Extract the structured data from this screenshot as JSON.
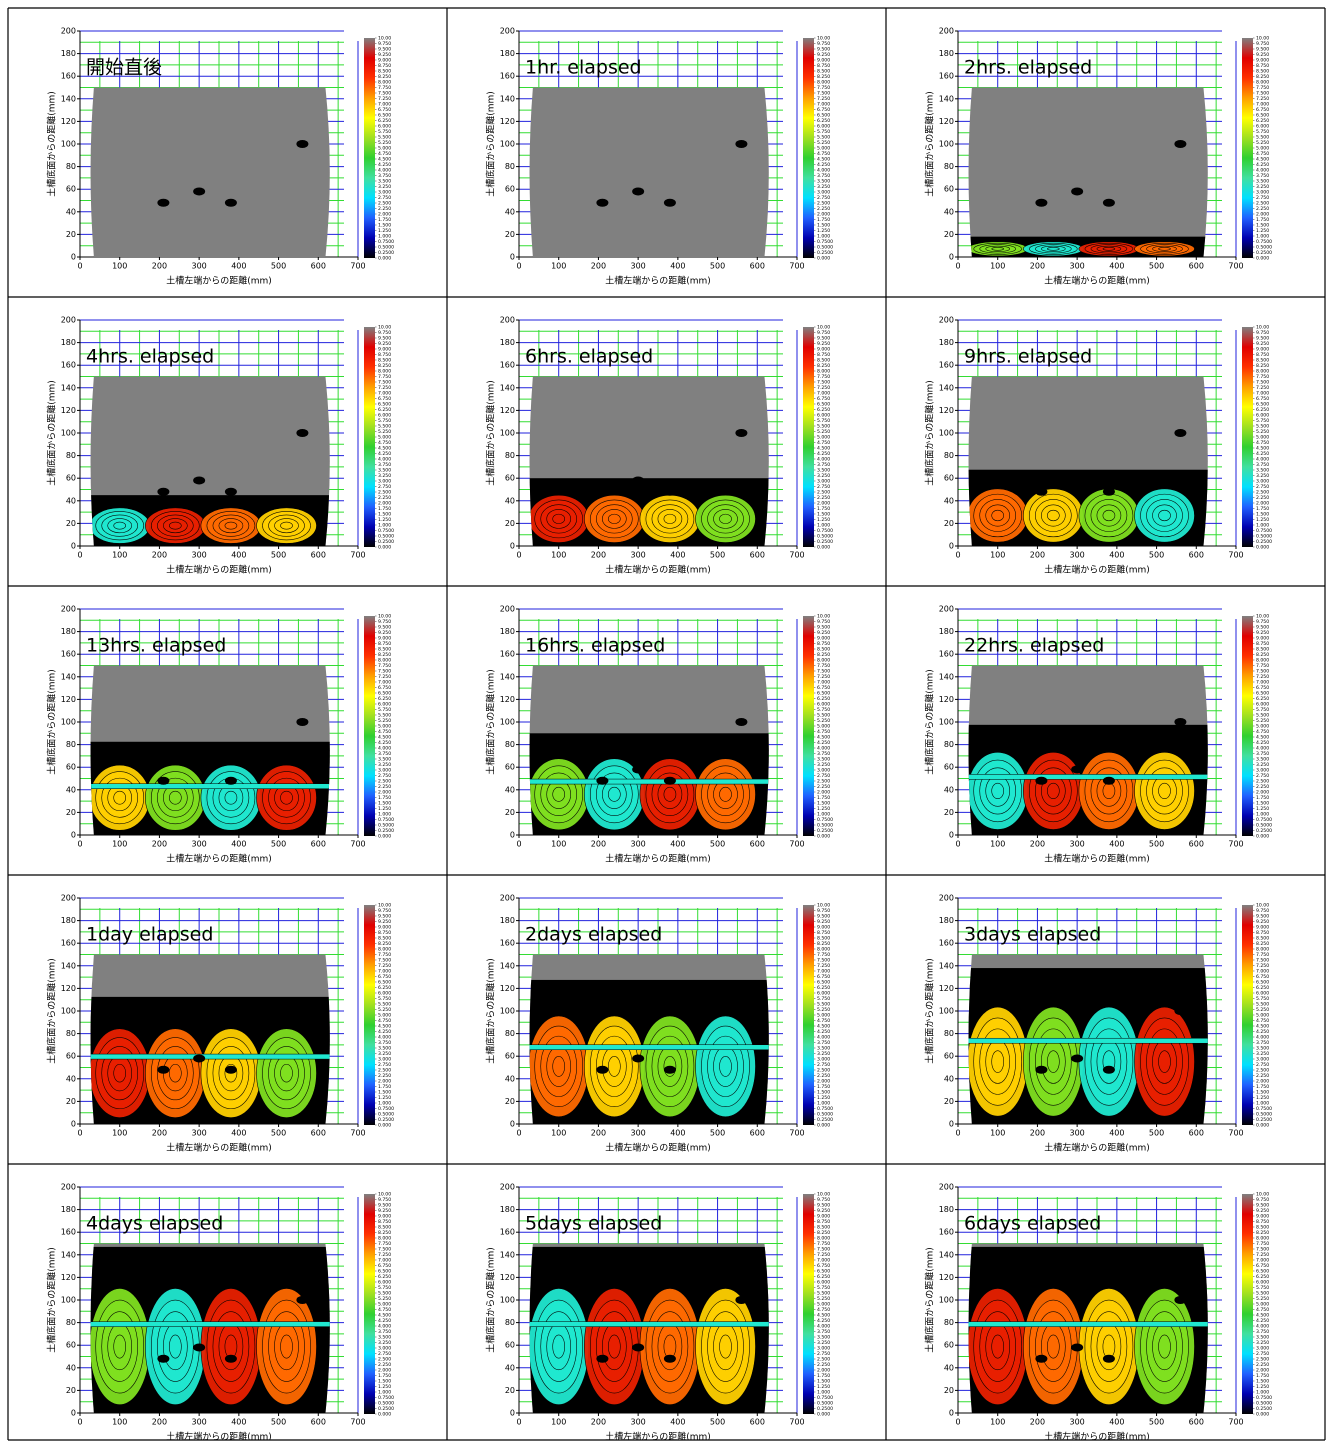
{
  "chart_data": [
    {
      "type": "contour",
      "title": "開始直後",
      "x_label": "土槽左端からの距離(mm)",
      "y_label": "土槽底面からの距離(mm)",
      "xlim": [
        0,
        700
      ],
      "xticks": [
        0,
        100,
        200,
        300,
        400,
        500,
        600,
        700
      ],
      "ylim": [
        0,
        200
      ],
      "yticks": [
        0,
        20,
        40,
        60,
        80,
        100,
        120,
        140,
        160,
        180,
        200
      ]
    },
    {
      "type": "contour",
      "title": "1hr. elapsed",
      "x_label": "土槽左端からの距離(mm)",
      "y_label": "土槽底面からの距離(mm)",
      "xlim": [
        0,
        700
      ],
      "xticks": [
        0,
        100,
        200,
        300,
        400,
        500,
        600,
        700
      ],
      "ylim": [
        0,
        200
      ],
      "yticks": [
        0,
        20,
        40,
        60,
        80,
        100,
        120,
        140,
        160,
        180,
        200
      ]
    },
    {
      "type": "contour",
      "title": "2hrs. elapsed",
      "x_label": "土槽左端からの距離(mm)",
      "y_label": "土槽底面からの距離(mm)",
      "xlim": [
        0,
        700
      ],
      "xticks": [
        0,
        100,
        200,
        300,
        400,
        500,
        600,
        700
      ],
      "ylim": [
        0,
        200
      ],
      "yticks": [
        0,
        20,
        40,
        60,
        80,
        100,
        120,
        140,
        160,
        180,
        200
      ]
    },
    {
      "type": "contour",
      "title": "4hrs. elapsed",
      "x_label": "土槽左端からの距離(mm)",
      "y_label": "土槽底面からの距離(mm)",
      "xlim": [
        0,
        700
      ],
      "xticks": [
        0,
        100,
        200,
        300,
        400,
        500,
        600,
        700
      ],
      "ylim": [
        0,
        200
      ],
      "yticks": [
        0,
        20,
        40,
        60,
        80,
        100,
        120,
        140,
        160,
        180,
        200
      ]
    },
    {
      "type": "contour",
      "title": "6hrs. elapsed",
      "x_label": "土槽左端からの距離(mm)",
      "y_label": "土槽底面からの距離(mm)",
      "xlim": [
        0,
        700
      ],
      "xticks": [
        0,
        100,
        200,
        300,
        400,
        500,
        600,
        700
      ],
      "ylim": [
        0,
        200
      ],
      "yticks": [
        0,
        20,
        40,
        60,
        80,
        100,
        120,
        140,
        160,
        180,
        200
      ]
    },
    {
      "type": "contour",
      "title": "9hrs. elapsed",
      "x_label": "土槽左端からの距離(mm)",
      "y_label": "土槽底面からの距離(mm)",
      "xlim": [
        0,
        700
      ],
      "xticks": [
        0,
        100,
        200,
        300,
        400,
        500,
        600,
        700
      ],
      "ylim": [
        0,
        200
      ],
      "yticks": [
        0,
        20,
        40,
        60,
        80,
        100,
        120,
        140,
        160,
        180,
        200
      ]
    },
    {
      "type": "contour",
      "title": "13hrs. elapsed",
      "x_label": "土槽左端からの距離(mm)",
      "y_label": "土槽底面からの距離(mm)",
      "xlim": [
        0,
        700
      ],
      "xticks": [
        0,
        100,
        200,
        300,
        400,
        500,
        600,
        700
      ],
      "ylim": [
        0,
        200
      ],
      "yticks": [
        0,
        20,
        40,
        60,
        80,
        100,
        120,
        140,
        160,
        180,
        200
      ]
    },
    {
      "type": "contour",
      "title": "16hrs. elapsed",
      "x_label": "土槽左端からの距離(mm)",
      "y_label": "土槽底面からの距離(mm)",
      "xlim": [
        0,
        700
      ],
      "xticks": [
        0,
        100,
        200,
        300,
        400,
        500,
        600,
        700
      ],
      "ylim": [
        0,
        200
      ],
      "yticks": [
        0,
        20,
        40,
        60,
        80,
        100,
        120,
        140,
        160,
        180,
        200
      ]
    },
    {
      "type": "contour",
      "title": "22hrs. elapsed",
      "x_label": "土槽左端からの距離(mm)",
      "y_label": "土槽底面からの距離(mm)",
      "xlim": [
        0,
        700
      ],
      "xticks": [
        0,
        100,
        200,
        300,
        400,
        500,
        600,
        700
      ],
      "ylim": [
        0,
        200
      ],
      "yticks": [
        0,
        20,
        40,
        60,
        80,
        100,
        120,
        140,
        160,
        180,
        200
      ]
    },
    {
      "type": "contour",
      "title": "1day elapsed",
      "x_label": "土槽左端からの距離(mm)",
      "y_label": "土槽底面からの距離(mm)",
      "xlim": [
        0,
        700
      ],
      "xticks": [
        0,
        100,
        200,
        300,
        400,
        500,
        600,
        700
      ],
      "ylim": [
        0,
        200
      ],
      "yticks": [
        0,
        20,
        40,
        60,
        80,
        100,
        120,
        140,
        160,
        180,
        200
      ]
    },
    {
      "type": "contour",
      "title": "2days elapsed",
      "x_label": "土槽左端からの距離(mm)",
      "y_label": "土槽底面からの距離(mm)",
      "xlim": [
        0,
        700
      ],
      "xticks": [
        0,
        100,
        200,
        300,
        400,
        500,
        600,
        700
      ],
      "ylim": [
        0,
        200
      ],
      "yticks": [
        0,
        20,
        40,
        60,
        80,
        100,
        120,
        140,
        160,
        180,
        200
      ]
    },
    {
      "type": "contour",
      "title": "3days elapsed",
      "x_label": "土槽左端からの距離(mm)",
      "y_label": "土槽底面からの距離(mm)",
      "xlim": [
        0,
        700
      ],
      "xticks": [
        0,
        100,
        200,
        300,
        400,
        500,
        600,
        700
      ],
      "ylim": [
        0,
        200
      ],
      "yticks": [
        0,
        20,
        40,
        60,
        80,
        100,
        120,
        140,
        160,
        180,
        200
      ]
    },
    {
      "type": "contour",
      "title": "4days elapsed",
      "x_label": "土槽左端からの距離(mm)",
      "y_label": "土槽底面からの距離(mm)",
      "xlim": [
        0,
        700
      ],
      "xticks": [
        0,
        100,
        200,
        300,
        400,
        500,
        600,
        700
      ],
      "ylim": [
        0,
        200
      ],
      "yticks": [
        0,
        20,
        40,
        60,
        80,
        100,
        120,
        140,
        160,
        180,
        200
      ]
    },
    {
      "type": "contour",
      "title": "5days elapsed",
      "x_label": "土槽左端からの距離(mm)",
      "y_label": "土槽底面からの距離(mm)",
      "xlim": [
        0,
        700
      ],
      "xticks": [
        0,
        100,
        200,
        300,
        400,
        500,
        600,
        700
      ],
      "ylim": [
        0,
        200
      ],
      "yticks": [
        0,
        20,
        40,
        60,
        80,
        100,
        120,
        140,
        160,
        180,
        200
      ]
    },
    {
      "type": "contour",
      "title": "6days elapsed",
      "x_label": "土槽左端からの距離(mm)",
      "y_label": "土槽底面からの距離(mm)",
      "xlim": [
        0,
        700
      ],
      "xticks": [
        0,
        100,
        200,
        300,
        400,
        500,
        600,
        700
      ],
      "ylim": [
        0,
        200
      ],
      "yticks": [
        0,
        20,
        40,
        60,
        80,
        100,
        120,
        140,
        160,
        180,
        200
      ]
    }
  ],
  "colorbar": {
    "colors": [
      "#000000",
      "#0000b0",
      "#2060ff",
      "#00e0ff",
      "#40e0a0",
      "#30d030",
      "#a0e020",
      "#ffff00",
      "#ffa000",
      "#ff3000",
      "#e00000",
      "#808080"
    ],
    "ticks": [
      {
        "value": 10,
        "label": "10.00"
      },
      {
        "value": 9.75,
        "label": "9.750"
      },
      {
        "value": 9.5,
        "label": "9.500"
      },
      {
        "value": 9.25,
        "label": "9.250"
      },
      {
        "value": 9,
        "label": "9.000"
      },
      {
        "value": 8.75,
        "label": "8.750"
      },
      {
        "value": 8.5,
        "label": "8.500"
      },
      {
        "value": 8.25,
        "label": "8.250"
      },
      {
        "value": 8,
        "label": "8.000"
      },
      {
        "value": 7.75,
        "label": "7.750"
      },
      {
        "value": 7.5,
        "label": "7.500"
      },
      {
        "value": 7.25,
        "label": "7.250"
      },
      {
        "value": 7,
        "label": "7.000"
      },
      {
        "value": 6.75,
        "label": "6.750"
      },
      {
        "value": 6.5,
        "label": "6.500"
      },
      {
        "value": 6.25,
        "label": "6.250"
      },
      {
        "value": 6,
        "label": "6.000"
      },
      {
        "value": 5.75,
        "label": "5.750"
      },
      {
        "value": 5.5,
        "label": "5.500"
      },
      {
        "value": 5.25,
        "label": "5.250"
      },
      {
        "value": 5,
        "label": "5.000"
      },
      {
        "value": 4.75,
        "label": "4.750"
      },
      {
        "value": 4.5,
        "label": "4.500"
      },
      {
        "value": 4.25,
        "label": "4.250"
      },
      {
        "value": 4,
        "label": "4.000"
      },
      {
        "value": 3.75,
        "label": "3.750"
      },
      {
        "value": 3.5,
        "label": "3.500"
      },
      {
        "value": 3.25,
        "label": "3.250"
      },
      {
        "value": 3,
        "label": "3.000"
      },
      {
        "value": 2.75,
        "label": "2.750"
      },
      {
        "value": 2.5,
        "label": "2.500"
      },
      {
        "value": 2.25,
        "label": "2.250"
      },
      {
        "value": 2,
        "label": "2.000"
      },
      {
        "value": 1.75,
        "label": "1.750"
      },
      {
        "value": 1.5,
        "label": "1.500"
      },
      {
        "value": 1.25,
        "label": "1.250"
      },
      {
        "value": 1,
        "label": "1.000"
      },
      {
        "value": 0.75,
        "label": "0.7500"
      },
      {
        "value": 0.5,
        "label": "0.5000"
      },
      {
        "value": 0.25,
        "label": "0.2500"
      },
      {
        "value": 0,
        "label": "0.000"
      }
    ]
  }
}
